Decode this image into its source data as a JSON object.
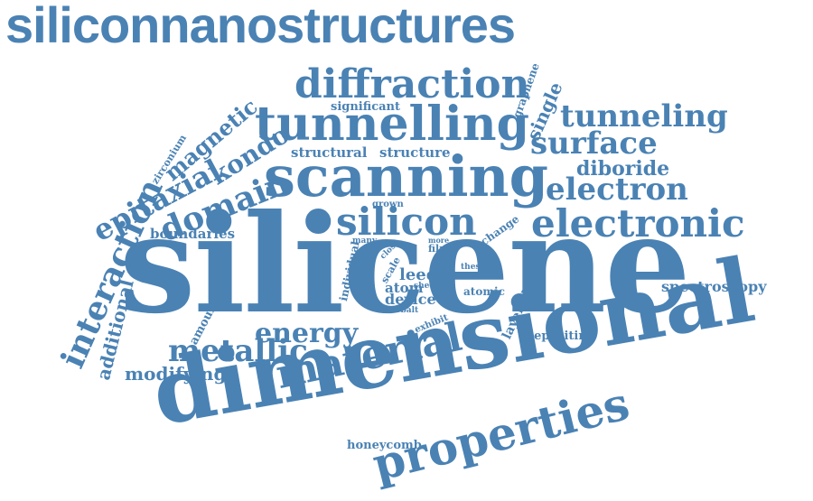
{
  "cloud": {
    "color": "#4a82b4",
    "words": [
      "siliconnanostructures",
      "diffraction",
      "tunnelling",
      "tunneling",
      "scanning",
      "surface",
      "diboride",
      "electron",
      "electronic",
      "silicon",
      "silicene",
      "dimensional",
      "properties",
      "material",
      "energy",
      "metallic",
      "modifying",
      "additional",
      "interaction",
      "epitaxial",
      "domain",
      "kondo",
      "magnetic",
      "zirconium",
      "significant",
      "graphene",
      "single",
      "structural",
      "structure",
      "boundaries",
      "grown",
      "change",
      "more",
      "film",
      "many",
      "close",
      "individual",
      "scale",
      "leed",
      "sheet",
      "atom",
      "device",
      "cobalt",
      "thesis",
      "atomic",
      "layered",
      "exhibit",
      "amount",
      "depositing",
      "spectroscopy",
      "honeycomb"
    ]
  }
}
